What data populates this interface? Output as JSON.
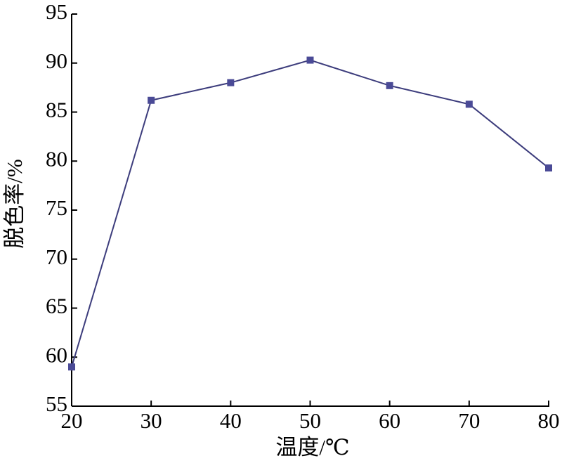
{
  "chart_data": {
    "type": "line",
    "x_label": "温度/℃",
    "y_label": "脱色率/%",
    "x": [
      20,
      30,
      40,
      50,
      60,
      70,
      80
    ],
    "series": [
      {
        "color": "#3c3c7c",
        "marker_color": "#4a4a96",
        "values": [
          59,
          86.2,
          88,
          90.3,
          87.7,
          85.8,
          79.3
        ]
      }
    ],
    "xlim": [
      20,
      80
    ],
    "xticks": [
      20,
      30,
      40,
      50,
      60,
      70,
      80
    ],
    "ylim": [
      55,
      95
    ],
    "yticks": [
      55,
      60,
      65,
      70,
      75,
      80,
      85,
      90,
      95
    ]
  }
}
